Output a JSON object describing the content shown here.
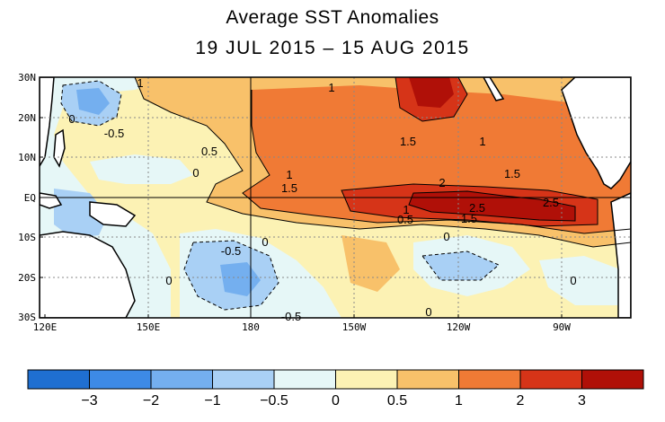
{
  "title": "Average SST Anomalies",
  "subtitle": "19 JUL 2015 – 15 AUG 2015",
  "axes": {
    "y_ticks": [
      "30N",
      "20N",
      "10N",
      "EQ",
      "10S",
      "20S",
      "30S"
    ],
    "x_ticks": [
      "120E",
      "150E",
      "180",
      "150W",
      "120W",
      "90W"
    ]
  },
  "contour_labels": [
    "1",
    "1",
    "0",
    "-0.5",
    "0.5",
    "0",
    "1.5",
    "1",
    "1",
    "1.5",
    "1.5",
    "2",
    "1",
    "0.5",
    "2.5",
    "2.5",
    "1.5",
    "-0.5",
    "0",
    "0",
    "0",
    "0",
    "-0.5",
    "0"
  ],
  "colorbar": {
    "colors": [
      "#1f6fd1",
      "#3d8ae6",
      "#74afef",
      "#a9d0f5",
      "#e6f7f7",
      "#fcf2b4",
      "#f8c16a",
      "#f07a35",
      "#d63418",
      "#b01008"
    ],
    "labels": [
      "−3",
      "−2",
      "−1",
      "−0.5",
      "0",
      "0.5",
      "1",
      "2",
      "3"
    ]
  },
  "colors": {
    "land": "#ffffff",
    "gridline": "#888888"
  }
}
